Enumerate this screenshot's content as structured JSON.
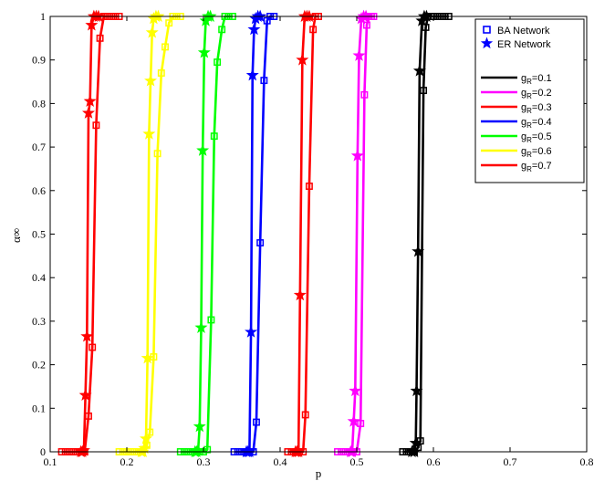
{
  "chart_data": {
    "type": "line",
    "title": "",
    "xlabel": "p",
    "ylabel": "α∞",
    "xlim": [
      0.1,
      0.8
    ],
    "ylim": [
      0,
      1
    ],
    "xticks": [
      "0.1",
      "0.2",
      "0.3",
      "0.4",
      "0.5",
      "0.6",
      "0.7",
      "0.8"
    ],
    "yticks": [
      "0",
      "0.1",
      "0.2",
      "0.3",
      "0.4",
      "0.5",
      "0.6",
      "0.7",
      "0.8",
      "0.9",
      "1"
    ],
    "grid": false,
    "legend_position": "top-right",
    "marker_legend": [
      {
        "label": "BA Network",
        "marker": "square"
      },
      {
        "label": "ER Network",
        "marker": "star"
      }
    ],
    "series": [
      {
        "name": "g_R=0.1",
        "label_base": "g",
        "label_sub": "R",
        "label_value": "=0.1",
        "color": "#000000",
        "ba": [
          [
            0.56,
            0
          ],
          [
            0.565,
            0
          ],
          [
            0.57,
            0
          ],
          [
            0.575,
            0
          ],
          [
            0.58,
            0.01
          ],
          [
            0.583,
            0.025
          ],
          [
            0.587,
            0.83
          ],
          [
            0.59,
            0.975
          ],
          [
            0.593,
            1
          ],
          [
            0.597,
            1
          ],
          [
            0.6,
            1
          ],
          [
            0.605,
            1
          ],
          [
            0.61,
            1
          ],
          [
            0.615,
            1
          ],
          [
            0.62,
            1
          ]
        ],
        "er": [
          [
            0.572,
            0
          ],
          [
            0.575,
            0
          ],
          [
            0.577,
            0.02
          ],
          [
            0.578,
            0.14
          ],
          [
            0.58,
            0.46
          ],
          [
            0.582,
            0.875
          ],
          [
            0.585,
            0.99
          ],
          [
            0.588,
            1
          ],
          [
            0.591,
            1
          ]
        ]
      },
      {
        "name": "g_R=0.2",
        "label_base": "g",
        "label_sub": "R",
        "label_value": "=0.2",
        "color": "#ff00ff",
        "ba": [
          [
            0.475,
            0
          ],
          [
            0.48,
            0
          ],
          [
            0.485,
            0
          ],
          [
            0.49,
            0
          ],
          [
            0.495,
            0
          ],
          [
            0.5,
            0
          ],
          [
            0.505,
            0.065
          ],
          [
            0.51,
            0.82
          ],
          [
            0.513,
            0.98
          ],
          [
            0.516,
            1
          ],
          [
            0.519,
            1
          ],
          [
            0.522,
            1
          ]
        ],
        "er": [
          [
            0.492,
            0
          ],
          [
            0.494,
            0
          ],
          [
            0.496,
            0.07
          ],
          [
            0.498,
            0.14
          ],
          [
            0.501,
            0.68
          ],
          [
            0.503,
            0.91
          ],
          [
            0.506,
            0.995
          ],
          [
            0.509,
            1
          ],
          [
            0.512,
            1
          ]
        ]
      },
      {
        "name": "g_R=0.3",
        "label_base": "g",
        "label_sub": "R",
        "label_value": "=0.3",
        "color": "#ff0000",
        "ba": [
          [
            0.41,
            0
          ],
          [
            0.415,
            0
          ],
          [
            0.42,
            0
          ],
          [
            0.425,
            0
          ],
          [
            0.43,
            0
          ],
          [
            0.433,
            0.085
          ],
          [
            0.438,
            0.61
          ],
          [
            0.443,
            0.97
          ],
          [
            0.446,
            1
          ],
          [
            0.45,
            1
          ]
        ],
        "er": [
          [
            0.42,
            0
          ],
          [
            0.422,
            0
          ],
          [
            0.424,
            0
          ],
          [
            0.426,
            0.36
          ],
          [
            0.429,
            0.9
          ],
          [
            0.432,
            1
          ],
          [
            0.435,
            1
          ],
          [
            0.438,
            1
          ]
        ]
      },
      {
        "name": "g_R=0.4",
        "label_base": "g",
        "label_sub": "R",
        "label_value": "=0.4",
        "color": "#0000ff",
        "ba": [
          [
            0.34,
            0
          ],
          [
            0.345,
            0
          ],
          [
            0.35,
            0
          ],
          [
            0.355,
            0
          ],
          [
            0.36,
            0
          ],
          [
            0.365,
            0
          ],
          [
            0.369,
            0.068
          ],
          [
            0.374,
            0.48
          ],
          [
            0.379,
            0.853
          ],
          [
            0.383,
            0.99
          ],
          [
            0.387,
            1
          ],
          [
            0.392,
            1
          ]
        ],
        "er": [
          [
            0.356,
            0
          ],
          [
            0.358,
            0
          ],
          [
            0.36,
            0
          ],
          [
            0.362,
            0.275
          ],
          [
            0.364,
            0.865
          ],
          [
            0.366,
            0.97
          ],
          [
            0.368,
            0.995
          ],
          [
            0.371,
            1
          ],
          [
            0.374,
            1
          ]
        ]
      },
      {
        "name": "g_R=0.5",
        "label_base": "g",
        "label_sub": "R",
        "label_value": "=0.5",
        "color": "#00ff00",
        "ba": [
          [
            0.27,
            0
          ],
          [
            0.275,
            0
          ],
          [
            0.28,
            0
          ],
          [
            0.285,
            0
          ],
          [
            0.29,
            0
          ],
          [
            0.295,
            0
          ],
          [
            0.3,
            0
          ],
          [
            0.305,
            0.005
          ],
          [
            0.31,
            0.303
          ],
          [
            0.314,
            0.725
          ],
          [
            0.318,
            0.895
          ],
          [
            0.324,
            0.97
          ],
          [
            0.328,
            1
          ],
          [
            0.333,
            1
          ],
          [
            0.338,
            1
          ]
        ],
        "er": [
          [
            0.289,
            0
          ],
          [
            0.291,
            0
          ],
          [
            0.293,
            0.003
          ],
          [
            0.295,
            0.058
          ],
          [
            0.297,
            0.285
          ],
          [
            0.299,
            0.692
          ],
          [
            0.301,
            0.917
          ],
          [
            0.303,
            0.99
          ],
          [
            0.306,
            1
          ],
          [
            0.309,
            1
          ]
        ]
      },
      {
        "name": "g_R=0.6",
        "label_base": "g",
        "label_sub": "R",
        "label_value": "=0.6",
        "color": "#ffff00",
        "ba": [
          [
            0.19,
            0
          ],
          [
            0.195,
            0
          ],
          [
            0.2,
            0
          ],
          [
            0.205,
            0
          ],
          [
            0.21,
            0
          ],
          [
            0.215,
            0
          ],
          [
            0.22,
            0
          ],
          [
            0.226,
            0.015
          ],
          [
            0.23,
            0.045
          ],
          [
            0.235,
            0.218
          ],
          [
            0.24,
            0.685
          ],
          [
            0.245,
            0.87
          ],
          [
            0.25,
            0.93
          ],
          [
            0.255,
            0.985
          ],
          [
            0.26,
            1
          ],
          [
            0.265,
            1
          ],
          [
            0.27,
            1
          ]
        ],
        "er": [
          [
            0.219,
            0
          ],
          [
            0.221,
            0
          ],
          [
            0.223,
            0.008
          ],
          [
            0.225,
            0.03
          ],
          [
            0.227,
            0.215
          ],
          [
            0.229,
            0.73
          ],
          [
            0.231,
            0.852
          ],
          [
            0.233,
            0.963
          ],
          [
            0.235,
            0.995
          ],
          [
            0.238,
            1
          ],
          [
            0.241,
            1
          ]
        ]
      },
      {
        "name": "g_R=0.7",
        "label_base": "g",
        "label_sub": "R",
        "label_value": "=0.7",
        "color": "#ff0000",
        "ba": [
          [
            0.115,
            0
          ],
          [
            0.12,
            0
          ],
          [
            0.125,
            0
          ],
          [
            0.13,
            0
          ],
          [
            0.135,
            0
          ],
          [
            0.14,
            0
          ],
          [
            0.145,
            0
          ],
          [
            0.15,
            0.082
          ],
          [
            0.155,
            0.24
          ],
          [
            0.16,
            0.75
          ],
          [
            0.165,
            0.95
          ],
          [
            0.17,
            1
          ],
          [
            0.175,
            1
          ],
          [
            0.18,
            1
          ],
          [
            0.185,
            1
          ],
          [
            0.19,
            1
          ]
        ],
        "er": [
          [
            0.14,
            0
          ],
          [
            0.142,
            0
          ],
          [
            0.144,
            0.003
          ],
          [
            0.146,
            0.13
          ],
          [
            0.148,
            0.265
          ],
          [
            0.15,
            0.778
          ],
          [
            0.152,
            0.805
          ],
          [
            0.154,
            0.98
          ],
          [
            0.157,
            1
          ],
          [
            0.16,
            1
          ],
          [
            0.163,
            1
          ]
        ]
      }
    ]
  }
}
